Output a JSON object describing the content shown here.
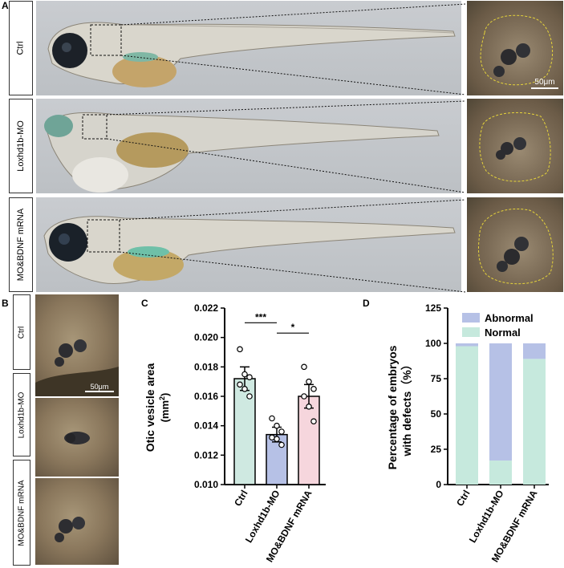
{
  "panel_labels": {
    "a": "A",
    "b": "B",
    "c": "C",
    "d": "D"
  },
  "rows_a": [
    {
      "label": "Ctrl"
    },
    {
      "label": "Loxhd1b-MO"
    },
    {
      "label": "MO&BDNF mRNA"
    }
  ],
  "rows_b": [
    {
      "label": "Ctrl"
    },
    {
      "label": "Loxhd1b-MO"
    },
    {
      "label": "MO&BDNF mRNA"
    }
  ],
  "scale_bar_text": "50μm",
  "colors": {
    "ctrl": "#cfe9e1",
    "mo": "#b6c1e6",
    "rescue": "#f6d6dd",
    "abnormal": "#b6c1e6",
    "normal": "#c6e9dd"
  },
  "chart_data": [
    {
      "type": "bar",
      "ylabel": "Otic vesicle area",
      "yunit": "(mm",
      "yunit_sup": "2",
      "yunit_close": ")",
      "categories": [
        "Ctrl",
        "Loxhd1b-MO",
        "MO&BDNF mRNA"
      ],
      "values": [
        0.0172,
        0.0134,
        0.016
      ],
      "errors": [
        0.0008,
        0.0005,
        0.0008
      ],
      "points": [
        [
          0.0192,
          0.0175,
          0.0173,
          0.0168,
          0.0165,
          0.016
        ],
        [
          0.0145,
          0.014,
          0.0136,
          0.0132,
          0.0131,
          0.0127
        ],
        [
          0.018,
          0.017,
          0.0165,
          0.016,
          0.0153,
          0.0143
        ]
      ],
      "ylim": [
        0.01,
        0.022
      ],
      "yticks": [
        "0.010",
        "0.012",
        "0.014",
        "0.016",
        "0.018",
        "0.020",
        "0.022"
      ],
      "significance": [
        {
          "from": 0,
          "to": 1,
          "label": "***"
        },
        {
          "from": 1,
          "to": 2,
          "label": "*"
        }
      ]
    },
    {
      "type": "bar",
      "stacked": true,
      "ylabel_line1": "Percentage of embryos",
      "ylabel_line2": "with defects（%）",
      "categories": [
        "Ctrl",
        "Loxhd1b-MO",
        "MO&BDNF mRNA"
      ],
      "series": [
        {
          "name": "Normal",
          "values": [
            98,
            17,
            89
          ]
        },
        {
          "name": "Abnormal",
          "values": [
            2,
            83,
            11
          ]
        }
      ],
      "ylim": [
        0,
        125
      ],
      "yticks": [
        "0",
        "25",
        "50",
        "75",
        "100",
        "125"
      ],
      "legend": "top-right"
    }
  ]
}
